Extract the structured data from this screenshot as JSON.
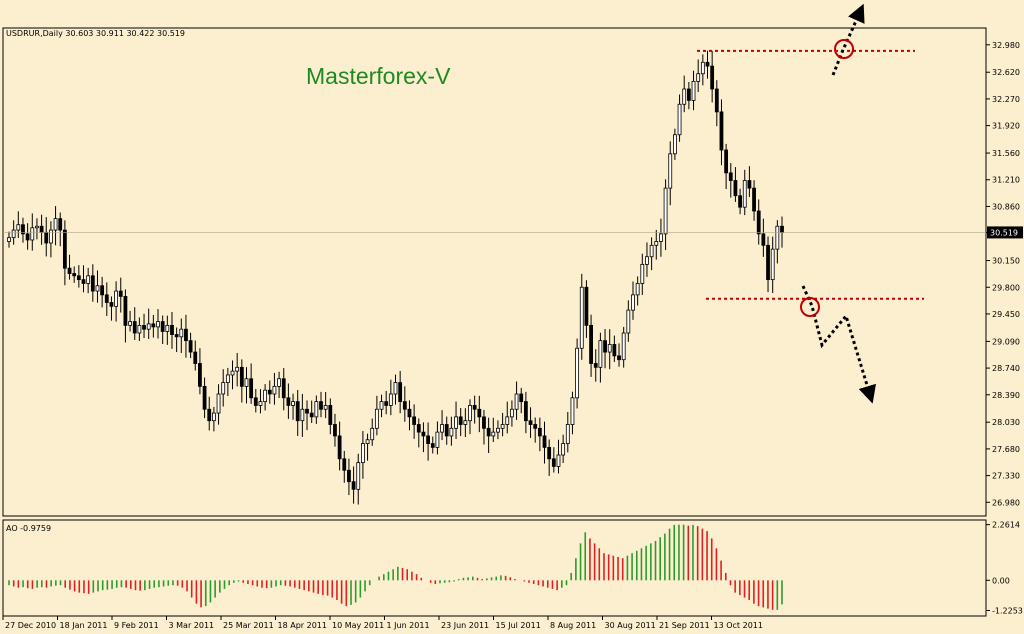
{
  "window": {
    "symbol_info": "USDRUR,Daily  30.603 30.911 30.422 30.519",
    "watermark": "Masterforex-V"
  },
  "colors": {
    "background": "#fcefcf",
    "frame": "#000000",
    "candle": "#000000",
    "level_line": "#c00000",
    "ao_up": "#2e9b2e",
    "ao_down": "#e02020",
    "watermark": "#1f8a1f",
    "current_price_bg": "#000000",
    "current_price_text": "#ffffff"
  },
  "chart_data": [
    {
      "type": "candlestick",
      "title": "USDRUR,Daily",
      "ohlc_last": {
        "open": 30.603,
        "high": 30.911,
        "low": 30.422,
        "close": 30.519
      },
      "current_price_label": "30.519",
      "ylim": [
        26.8,
        33.2
      ],
      "y_ticks": [
        "32.980",
        "32.620",
        "32.270",
        "31.920",
        "31.560",
        "31.210",
        "30.860",
        "30.519",
        "30.150",
        "29.800",
        "29.450",
        "29.090",
        "28.740",
        "28.390",
        "28.030",
        "27.680",
        "27.330",
        "26.980"
      ],
      "x_ticks": [
        "27 Dec 2010",
        "18 Jan 2011",
        "9 Feb 2011",
        "3 Mar 2011",
        "25 Mar 2011",
        "18 Apr 2011",
        "10 May 2011",
        "1 Jun 2011",
        "23 Jun 2011",
        "15 Jul 2011",
        "8 Aug 2011",
        "30 Aug 2011",
        "21 Sep 2011",
        "13 Oct 2011"
      ],
      "closes": [
        30.45,
        30.55,
        30.62,
        30.5,
        30.42,
        30.58,
        30.6,
        30.52,
        30.38,
        30.55,
        30.7,
        30.55,
        30.05,
        29.98,
        29.95,
        29.9,
        29.85,
        29.95,
        29.75,
        29.82,
        29.7,
        29.6,
        29.55,
        29.75,
        29.68,
        29.3,
        29.35,
        29.2,
        29.3,
        29.25,
        29.32,
        29.28,
        29.35,
        29.22,
        29.3,
        29.18,
        29.15,
        29.25,
        29.1,
        28.95,
        28.8,
        28.5,
        28.2,
        28.05,
        28.15,
        28.4,
        28.55,
        28.65,
        28.7,
        28.75,
        28.5,
        28.6,
        28.35,
        28.25,
        28.3,
        28.45,
        28.4,
        28.5,
        28.6,
        28.35,
        28.25,
        28.3,
        28.05,
        28.2,
        28.15,
        28.1,
        28.3,
        28.2,
        28.25,
        28.0,
        27.85,
        27.55,
        27.4,
        27.25,
        27.15,
        27.5,
        27.75,
        27.8,
        27.95,
        28.2,
        28.3,
        28.25,
        28.4,
        28.55,
        28.3,
        28.2,
        28.1,
        28.0,
        27.9,
        27.85,
        27.75,
        27.7,
        27.9,
        28.0,
        27.85,
        27.95,
        28.1,
        28.0,
        28.05,
        28.25,
        28.2,
        28.1,
        27.95,
        27.85,
        27.9,
        27.95,
        28.0,
        28.1,
        28.2,
        28.4,
        28.3,
        28.05,
        28.0,
        27.95,
        27.85,
        27.7,
        27.55,
        27.45,
        27.6,
        27.75,
        28.0,
        28.35,
        29.0,
        29.8,
        29.3,
        28.8,
        28.75,
        29.1,
        28.95,
        29.05,
        28.9,
        28.85,
        29.2,
        29.5,
        29.7,
        29.85,
        30.1,
        30.2,
        30.35,
        30.4,
        30.5,
        31.1,
        31.55,
        31.8,
        32.2,
        32.4,
        32.25,
        32.5,
        32.6,
        32.75,
        32.7,
        32.4,
        32.1,
        31.6,
        31.3,
        31.2,
        31.0,
        30.85,
        31.2,
        31.1,
        30.8,
        30.5,
        30.35,
        29.9,
        30.3,
        30.6,
        30.519
      ],
      "levels": [
        {
          "label": "resistance",
          "value": 32.9
        },
        {
          "label": "support",
          "value": 29.65
        }
      ]
    },
    {
      "type": "bar",
      "title": "AO -0.9759",
      "indicator_value": "-0.9759",
      "ylim": [
        -1.45,
        2.45
      ],
      "y_ticks": [
        "2.2614",
        "0.00",
        "-1.2253"
      ],
      "values": [
        -0.2,
        -0.25,
        -0.3,
        -0.28,
        -0.32,
        -0.35,
        -0.3,
        -0.28,
        -0.3,
        -0.25,
        -0.22,
        -0.2,
        -0.3,
        -0.38,
        -0.45,
        -0.5,
        -0.52,
        -0.55,
        -0.5,
        -0.45,
        -0.4,
        -0.38,
        -0.35,
        -0.3,
        -0.28,
        -0.3,
        -0.35,
        -0.4,
        -0.42,
        -0.4,
        -0.35,
        -0.3,
        -0.28,
        -0.25,
        -0.22,
        -0.2,
        -0.22,
        -0.3,
        -0.45,
        -0.7,
        -0.95,
        -1.1,
        -1.05,
        -0.9,
        -0.7,
        -0.5,
        -0.35,
        -0.2,
        -0.1,
        -0.05,
        -0.1,
        -0.15,
        -0.2,
        -0.25,
        -0.3,
        -0.32,
        -0.3,
        -0.25,
        -0.2,
        -0.22,
        -0.25,
        -0.3,
        -0.35,
        -0.4,
        -0.45,
        -0.5,
        -0.55,
        -0.6,
        -0.62,
        -0.7,
        -0.8,
        -0.95,
        -1.05,
        -1.0,
        -0.9,
        -0.7,
        -0.45,
        -0.2,
        0.0,
        0.15,
        0.25,
        0.35,
        0.45,
        0.55,
        0.5,
        0.45,
        0.35,
        0.25,
        0.1,
        0.0,
        -0.1,
        -0.15,
        -0.12,
        -0.1,
        -0.08,
        -0.05,
        0.05,
        0.1,
        0.12,
        0.15,
        0.1,
        0.05,
        0.08,
        0.12,
        0.15,
        0.2,
        0.18,
        0.12,
        0.05,
        0.0,
        -0.05,
        -0.1,
        -0.15,
        -0.2,
        -0.25,
        -0.3,
        -0.35,
        -0.4,
        -0.3,
        -0.2,
        0.3,
        0.9,
        1.5,
        1.95,
        1.7,
        1.5,
        1.3,
        1.1,
        1.05,
        1.0,
        0.95,
        0.9,
        1.0,
        1.1,
        1.2,
        1.3,
        1.4,
        1.5,
        1.6,
        1.75,
        1.9,
        2.1,
        2.25,
        2.26,
        2.26,
        2.22,
        2.25,
        2.2,
        2.1,
        2.0,
        1.7,
        1.3,
        0.8,
        0.3,
        -0.2,
        -0.5,
        -0.6,
        -0.7,
        -0.8,
        -0.95,
        -1.05,
        -1.1,
        -1.15,
        -1.2,
        -1.2,
        -0.9759
      ]
    }
  ]
}
